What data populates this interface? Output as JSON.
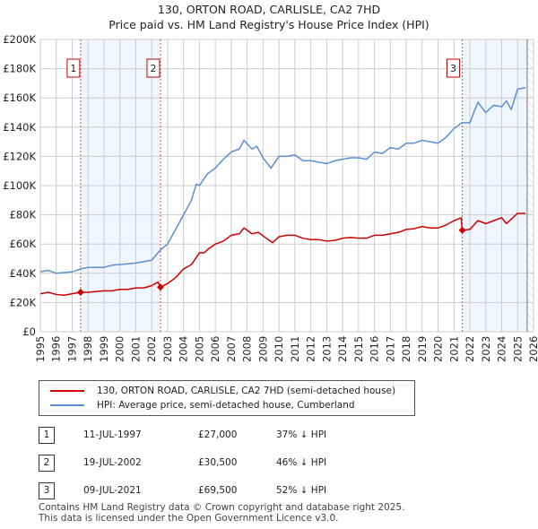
{
  "chart_data": {
    "type": "line",
    "title": "130, ORTON ROAD, CARLISLE, CA2 7HD",
    "subtitle": "Price paid vs. HM Land Registry's House Price Index (HPI)",
    "xlim": [
      1995,
      2026
    ],
    "ylim": [
      0,
      200000
    ],
    "x_ticks": [
      "1995",
      "1996",
      "1997",
      "1998",
      "1999",
      "2000",
      "2001",
      "2002",
      "2003",
      "2004",
      "2005",
      "2006",
      "2007",
      "2008",
      "2009",
      "2010",
      "2011",
      "2012",
      "2013",
      "2014",
      "2015",
      "2016",
      "2017",
      "2018",
      "2019",
      "2020",
      "2021",
      "2022",
      "2023",
      "2024",
      "2025",
      "2026"
    ],
    "y_ticks": [
      {
        "v": 0,
        "l": "£0"
      },
      {
        "v": 20000,
        "l": "£20K"
      },
      {
        "v": 40000,
        "l": "£40K"
      },
      {
        "v": 60000,
        "l": "£60K"
      },
      {
        "v": 80000,
        "l": "£80K"
      },
      {
        "v": 100000,
        "l": "£100K"
      },
      {
        "v": 120000,
        "l": "£120K"
      },
      {
        "v": 140000,
        "l": "£140K"
      },
      {
        "v": 160000,
        "l": "£160K"
      },
      {
        "v": 180000,
        "l": "£180K"
      },
      {
        "v": 200000,
        "l": "£200K"
      }
    ],
    "grid": true,
    "shaded_ranges": [
      [
        1997.53,
        2002.55
      ],
      [
        2021.52,
        2025.6
      ]
    ],
    "hatched_from": 2025.6,
    "series": [
      {
        "name": "130, ORTON ROAD, CARLISLE, CA2 7HD (semi-detached house)",
        "color": "#cc0000",
        "points": [
          [
            1995,
            26000
          ],
          [
            1995.5,
            27000
          ],
          [
            1996,
            25500
          ],
          [
            1996.5,
            25000
          ],
          [
            1997,
            26000
          ],
          [
            1997.53,
            27000
          ],
          [
            1998,
            27000
          ],
          [
            1998.5,
            27500
          ],
          [
            1999,
            28000
          ],
          [
            1999.5,
            28000
          ],
          [
            2000,
            29000
          ],
          [
            2000.5,
            29000
          ],
          [
            2001,
            30000
          ],
          [
            2001.5,
            30000
          ],
          [
            2002,
            31500
          ],
          [
            2002.4,
            34000
          ],
          [
            2002.55,
            30500
          ],
          [
            2003,
            33000
          ],
          [
            2003.5,
            37000
          ],
          [
            2004,
            43000
          ],
          [
            2004.5,
            46000
          ],
          [
            2005,
            54000
          ],
          [
            2005.3,
            54000
          ],
          [
            2005.6,
            57000
          ],
          [
            2006,
            60000
          ],
          [
            2006.5,
            62000
          ],
          [
            2007,
            66000
          ],
          [
            2007.5,
            67000
          ],
          [
            2007.8,
            71000
          ],
          [
            2008.3,
            67000
          ],
          [
            2008.7,
            68000
          ],
          [
            2009.2,
            64000
          ],
          [
            2009.6,
            61000
          ],
          [
            2010,
            65000
          ],
          [
            2010.5,
            66000
          ],
          [
            2011,
            66000
          ],
          [
            2011.5,
            64000
          ],
          [
            2012,
            63000
          ],
          [
            2012.5,
            63000
          ],
          [
            2013,
            62000
          ],
          [
            2013.5,
            62500
          ],
          [
            2014,
            64000
          ],
          [
            2014.5,
            64500
          ],
          [
            2015,
            64000
          ],
          [
            2015.5,
            64000
          ],
          [
            2016,
            66000
          ],
          [
            2016.5,
            66000
          ],
          [
            2017,
            67000
          ],
          [
            2017.5,
            68000
          ],
          [
            2018,
            70000
          ],
          [
            2018.5,
            70500
          ],
          [
            2019,
            72000
          ],
          [
            2019.5,
            71000
          ],
          [
            2020,
            71000
          ],
          [
            2020.5,
            73000
          ],
          [
            2021,
            76000
          ],
          [
            2021.45,
            78000
          ],
          [
            2021.52,
            69500
          ],
          [
            2022,
            70000
          ],
          [
            2022.5,
            76000
          ],
          [
            2023,
            74000
          ],
          [
            2023.5,
            76000
          ],
          [
            2024,
            78000
          ],
          [
            2024.3,
            74000
          ],
          [
            2025,
            81000
          ],
          [
            2025.5,
            81000
          ]
        ]
      },
      {
        "name": "HPI: Average price, semi-detached house, Cumberland",
        "color": "#5b8fd4",
        "points": [
          [
            1995,
            41000
          ],
          [
            1995.5,
            42000
          ],
          [
            1996,
            40000
          ],
          [
            1996.5,
            40500
          ],
          [
            1997,
            41000
          ],
          [
            1997.53,
            43000
          ],
          [
            1998,
            44000
          ],
          [
            1998.5,
            44000
          ],
          [
            1999,
            44000
          ],
          [
            1999.5,
            45500
          ],
          [
            2000,
            46000
          ],
          [
            2000.5,
            46500
          ],
          [
            2001,
            47000
          ],
          [
            2001.5,
            48000
          ],
          [
            2002,
            49000
          ],
          [
            2002.55,
            56000
          ],
          [
            2003,
            60000
          ],
          [
            2003.5,
            70000
          ],
          [
            2004,
            80000
          ],
          [
            2004.5,
            90000
          ],
          [
            2004.8,
            101000
          ],
          [
            2005,
            100000
          ],
          [
            2005.5,
            108000
          ],
          [
            2006,
            112000
          ],
          [
            2006.5,
            118000
          ],
          [
            2007,
            123000
          ],
          [
            2007.5,
            125000
          ],
          [
            2007.8,
            131000
          ],
          [
            2008.3,
            125000
          ],
          [
            2008.6,
            127000
          ],
          [
            2009,
            119000
          ],
          [
            2009.5,
            112000
          ],
          [
            2010,
            120000
          ],
          [
            2010.5,
            120000
          ],
          [
            2011,
            121000
          ],
          [
            2011.5,
            117000
          ],
          [
            2012,
            117000
          ],
          [
            2012.5,
            116000
          ],
          [
            2013,
            115000
          ],
          [
            2013.5,
            117000
          ],
          [
            2014,
            118000
          ],
          [
            2014.5,
            119000
          ],
          [
            2015,
            119000
          ],
          [
            2015.5,
            118000
          ],
          [
            2016,
            123000
          ],
          [
            2016.5,
            122000
          ],
          [
            2017,
            126000
          ],
          [
            2017.5,
            125000
          ],
          [
            2018,
            129000
          ],
          [
            2018.5,
            129000
          ],
          [
            2019,
            131000
          ],
          [
            2019.5,
            130000
          ],
          [
            2020,
            129000
          ],
          [
            2020.5,
            133000
          ],
          [
            2021,
            139000
          ],
          [
            2021.5,
            143000
          ],
          [
            2022,
            143000
          ],
          [
            2022.5,
            157000
          ],
          [
            2023,
            150000
          ],
          [
            2023.5,
            155000
          ],
          [
            2024,
            154000
          ],
          [
            2024.3,
            158000
          ],
          [
            2024.6,
            152000
          ],
          [
            2025,
            166000
          ],
          [
            2025.5,
            167000
          ]
        ]
      }
    ],
    "sales": [
      {
        "label": "1",
        "x": 1997.53,
        "value": 27000
      },
      {
        "label": "2",
        "x": 2002.55,
        "value": 30500
      },
      {
        "label": "3",
        "x": 2021.52,
        "value": 69500
      }
    ]
  },
  "table": [
    {
      "num": "1",
      "date": "11-JUL-1997",
      "price": "£27,000",
      "hpi": "37% ↓ HPI"
    },
    {
      "num": "2",
      "date": "19-JUL-2002",
      "price": "£30,500",
      "hpi": "46% ↓ HPI"
    },
    {
      "num": "3",
      "date": "09-JUL-2021",
      "price": "£69,500",
      "hpi": "52% ↓ HPI"
    }
  ],
  "footer": [
    "Contains HM Land Registry data © Crown copyright and database right 2025.",
    "This data is licensed under the Open Government Licence v3.0."
  ]
}
